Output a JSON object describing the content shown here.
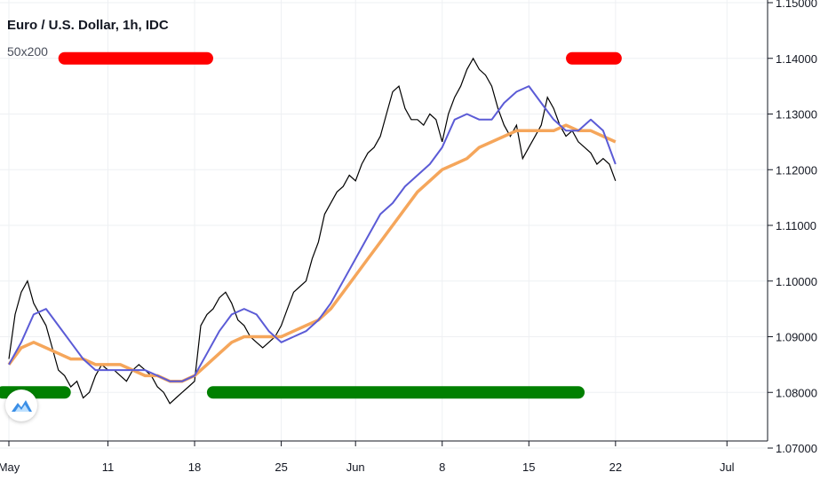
{
  "header": {
    "title": "Euro / U.S. Dollar, 1h, IDC",
    "indicator": "50x200"
  },
  "colors": {
    "price": "#000000",
    "ma_fast": "#5b5bd6",
    "ma_slow": "#f5a65b",
    "signal_sell": "#ff0000",
    "signal_buy": "#008000",
    "grid": "#eef0f3",
    "axis": "#131722",
    "logo": "#3a8ee6"
  },
  "chart_data": {
    "type": "line",
    "title": "Euro / U.S. Dollar, 1h, IDC",
    "xlabel": "",
    "ylabel": "",
    "x_tick_labels": [
      "May",
      "11",
      "18",
      "25",
      "Jun",
      "8",
      "15",
      "22",
      "Jul"
    ],
    "x_tick_positions": [
      0,
      8,
      15,
      22,
      28,
      35,
      42,
      49,
      58
    ],
    "xlim": [
      0,
      62
    ],
    "ylim": [
      1.07,
      1.15
    ],
    "y_tick_labels": [
      "1.07000",
      "1.08000",
      "1.09000",
      "1.10000",
      "1.11000",
      "1.12000",
      "1.13000",
      "1.14000",
      "1.15000"
    ],
    "y_tick_values": [
      1.07,
      1.08,
      1.09,
      1.1,
      1.11,
      1.12,
      1.13,
      1.14,
      1.15
    ],
    "grid": true,
    "series": [
      {
        "role": "price",
        "x": [
          0,
          0.5,
          1,
          1.5,
          2,
          2.5,
          3,
          3.5,
          4,
          4.5,
          5,
          5.5,
          6,
          6.5,
          7,
          7.5,
          8,
          8.5,
          9,
          9.5,
          10,
          10.5,
          11,
          11.5,
          12,
          12.5,
          13,
          13.5,
          14,
          14.5,
          15,
          15.5,
          16,
          16.5,
          17,
          17.5,
          18,
          18.5,
          19,
          19.5,
          20,
          20.5,
          21,
          21.5,
          22,
          22.5,
          23,
          23.5,
          24,
          24.5,
          25,
          25.5,
          26,
          26.5,
          27,
          27.5,
          28,
          28.5,
          29,
          29.5,
          30,
          30.5,
          31,
          31.5,
          32,
          32.5,
          33,
          33.5,
          34,
          34.5,
          35,
          35.5,
          36,
          36.5,
          37,
          37.5,
          38,
          38.5,
          39,
          39.5,
          40,
          40.5,
          41,
          41.5,
          42,
          42.5,
          43,
          43.5,
          44,
          44.5,
          45,
          45.5,
          46,
          46.5,
          47,
          47.5,
          48,
          48.5,
          49
        ],
        "values": [
          1.086,
          1.094,
          1.098,
          1.1,
          1.096,
          1.094,
          1.092,
          1.088,
          1.084,
          1.083,
          1.081,
          1.082,
          1.079,
          1.08,
          1.083,
          1.085,
          1.084,
          1.084,
          1.083,
          1.082,
          1.084,
          1.085,
          1.084,
          1.083,
          1.081,
          1.08,
          1.078,
          1.079,
          1.08,
          1.081,
          1.082,
          1.092,
          1.094,
          1.095,
          1.097,
          1.098,
          1.096,
          1.093,
          1.092,
          1.09,
          1.089,
          1.088,
          1.089,
          1.09,
          1.092,
          1.095,
          1.098,
          1.099,
          1.1,
          1.104,
          1.107,
          1.112,
          1.114,
          1.116,
          1.117,
          1.119,
          1.118,
          1.121,
          1.123,
          1.124,
          1.126,
          1.13,
          1.134,
          1.135,
          1.131,
          1.129,
          1.129,
          1.128,
          1.13,
          1.129,
          1.125,
          1.13,
          1.133,
          1.135,
          1.138,
          1.14,
          1.138,
          1.137,
          1.135,
          1.131,
          1.128,
          1.126,
          1.128,
          1.122,
          1.124,
          1.126,
          1.128,
          1.133,
          1.131,
          1.128,
          1.126,
          1.127,
          1.125,
          1.124,
          1.123,
          1.121,
          1.122,
          1.121,
          1.118
        ]
      },
      {
        "role": "ma_fast",
        "x": [
          0,
          1,
          2,
          3,
          4,
          5,
          6,
          7,
          8,
          9,
          10,
          11,
          12,
          13,
          14,
          15,
          16,
          17,
          18,
          19,
          20,
          21,
          22,
          23,
          24,
          25,
          26,
          27,
          28,
          29,
          30,
          31,
          32,
          33,
          34,
          35,
          36,
          37,
          38,
          39,
          40,
          41,
          42,
          43,
          44,
          45,
          46,
          47,
          48,
          49
        ],
        "values": [
          1.085,
          1.089,
          1.094,
          1.095,
          1.092,
          1.089,
          1.086,
          1.084,
          1.084,
          1.084,
          1.084,
          1.084,
          1.083,
          1.082,
          1.082,
          1.083,
          1.087,
          1.091,
          1.094,
          1.095,
          1.094,
          1.091,
          1.089,
          1.09,
          1.091,
          1.093,
          1.096,
          1.1,
          1.104,
          1.108,
          1.112,
          1.114,
          1.117,
          1.119,
          1.121,
          1.124,
          1.129,
          1.13,
          1.129,
          1.129,
          1.132,
          1.134,
          1.135,
          1.132,
          1.129,
          1.127,
          1.127,
          1.129,
          1.127,
          1.121
        ]
      },
      {
        "role": "ma_slow",
        "x": [
          0,
          1,
          2,
          3,
          4,
          5,
          6,
          7,
          8,
          9,
          10,
          11,
          12,
          13,
          14,
          15,
          16,
          17,
          18,
          19,
          20,
          21,
          22,
          23,
          24,
          25,
          26,
          27,
          28,
          29,
          30,
          31,
          32,
          33,
          34,
          35,
          36,
          37,
          38,
          39,
          40,
          41,
          42,
          43,
          44,
          45,
          46,
          47,
          48,
          49
        ],
        "values": [
          1.085,
          1.088,
          1.089,
          1.088,
          1.087,
          1.086,
          1.086,
          1.085,
          1.085,
          1.085,
          1.084,
          1.083,
          1.083,
          1.082,
          1.082,
          1.083,
          1.085,
          1.087,
          1.089,
          1.09,
          1.09,
          1.09,
          1.09,
          1.091,
          1.092,
          1.093,
          1.095,
          1.098,
          1.101,
          1.104,
          1.107,
          1.11,
          1.113,
          1.116,
          1.118,
          1.12,
          1.121,
          1.122,
          1.124,
          1.125,
          1.126,
          1.127,
          1.127,
          1.127,
          1.127,
          1.128,
          1.127,
          1.127,
          1.126,
          1.125
        ]
      }
    ],
    "signals": [
      {
        "type": "sell",
        "x_start": 4.5,
        "x_end": 16.0,
        "value": 1.14
      },
      {
        "type": "sell",
        "x_start": 45.5,
        "x_end": 49.0,
        "value": 1.14
      },
      {
        "type": "buy",
        "x_start": -0.5,
        "x_end": 4.5,
        "value": 1.08
      },
      {
        "type": "buy",
        "x_start": 16.5,
        "x_end": 46.0,
        "value": 1.08
      }
    ]
  }
}
